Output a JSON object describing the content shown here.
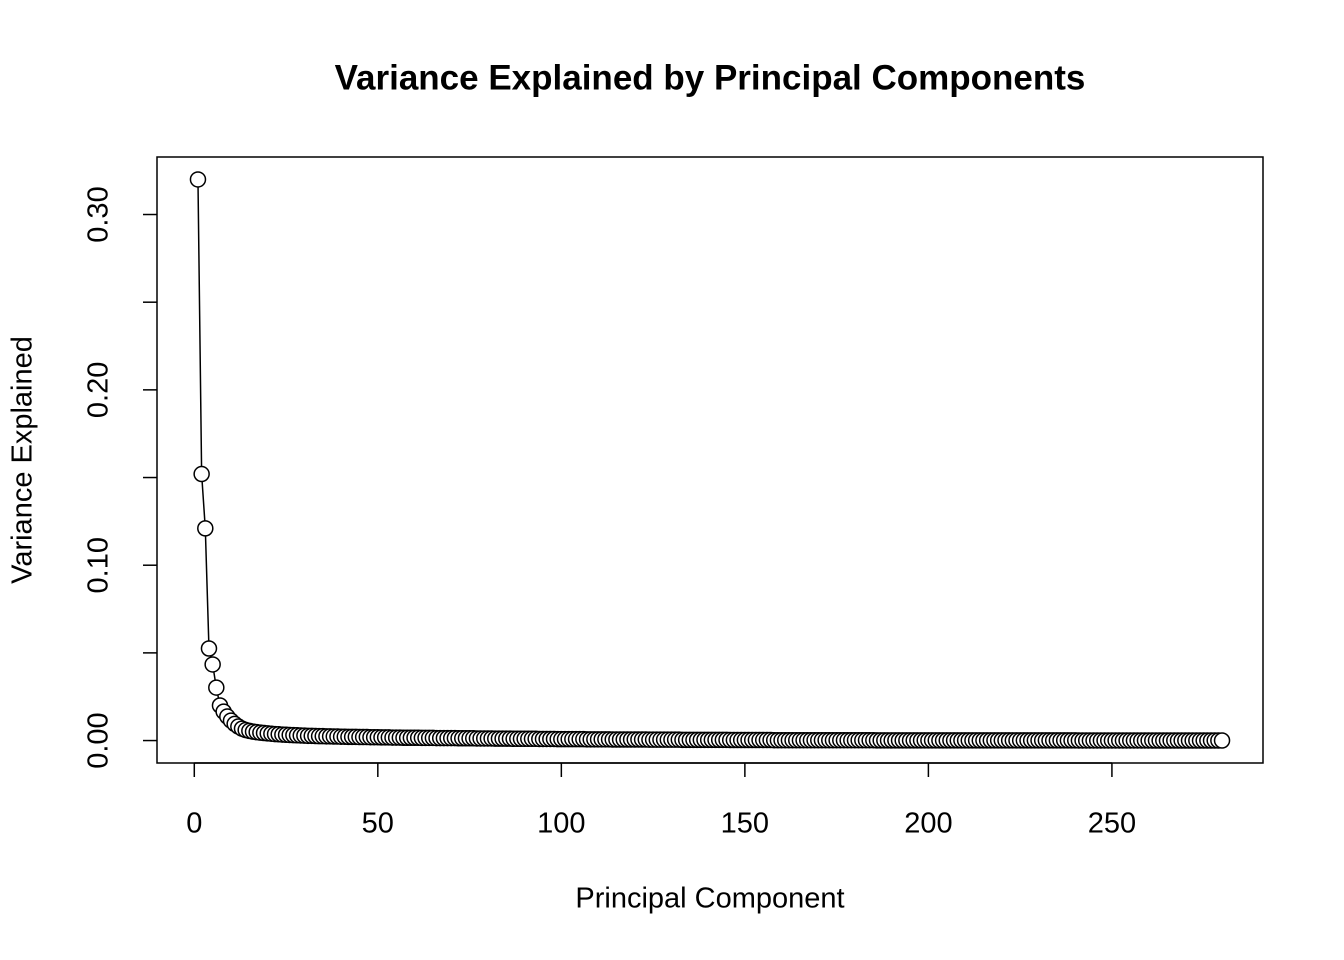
{
  "chart_data": {
    "type": "scatter-line",
    "title": "Variance Explained by Principal Components",
    "x_label": "Principal Component",
    "y_label": "Variance Explained",
    "color": "#000000",
    "xlim": [
      -10.16,
      291.16
    ],
    "ylim": [
      -0.0128,
      0.3328
    ],
    "xticks": [
      0,
      50,
      100,
      150,
      200,
      250
    ],
    "yticks": [
      {
        "value": 0,
        "label": "0.00"
      },
      {
        "value": 0.1,
        "label": "0.10"
      },
      {
        "value": 0.2,
        "label": "0.20"
      },
      {
        "value": 0.3,
        "label": "0.30"
      }
    ],
    "yminor_ticks": [
      0.05,
      0.15,
      0.25
    ],
    "x": [
      1,
      2,
      3,
      4,
      5,
      6,
      7,
      8,
      9,
      10,
      11,
      12,
      13,
      14,
      15,
      16,
      17,
      18,
      19,
      20,
      21,
      22,
      23,
      24,
      25,
      26,
      27,
      28,
      29,
      30,
      31,
      32,
      33,
      34,
      35,
      36,
      37,
      38,
      39,
      40,
      41,
      42,
      43,
      44,
      45,
      46,
      47,
      48,
      49,
      50,
      51,
      52,
      53,
      54,
      55,
      56,
      57,
      58,
      59,
      60,
      61,
      62,
      63,
      64,
      65,
      66,
      67,
      68,
      69,
      70,
      71,
      72,
      73,
      74,
      75,
      76,
      77,
      78,
      79,
      80,
      81,
      82,
      83,
      84,
      85,
      86,
      87,
      88,
      89,
      90,
      91,
      92,
      93,
      94,
      95,
      96,
      97,
      98,
      99,
      100,
      101,
      102,
      103,
      104,
      105,
      106,
      107,
      108,
      109,
      110,
      111,
      112,
      113,
      114,
      115,
      116,
      117,
      118,
      119,
      120,
      121,
      122,
      123,
      124,
      125,
      126,
      127,
      128,
      129,
      130,
      131,
      132,
      133,
      134,
      135,
      136,
      137,
      138,
      139,
      140,
      141,
      142,
      143,
      144,
      145,
      146,
      147,
      148,
      149,
      150,
      151,
      152,
      153,
      154,
      155,
      156,
      157,
      158,
      159,
      160,
      161,
      162,
      163,
      164,
      165,
      166,
      167,
      168,
      169,
      170,
      171,
      172,
      173,
      174,
      175,
      176,
      177,
      178,
      179,
      180,
      181,
      182,
      183,
      184,
      185,
      186,
      187,
      188,
      189,
      190,
      191,
      192,
      193,
      194,
      195,
      196,
      197,
      198,
      199,
      200,
      201,
      202,
      203,
      204,
      205,
      206,
      207,
      208,
      209,
      210,
      211,
      212,
      213,
      214,
      215,
      216,
      217,
      218,
      219,
      220,
      221,
      222,
      223,
      224,
      225,
      226,
      227,
      228,
      229,
      230,
      231,
      232,
      233,
      234,
      235,
      236,
      237,
      238,
      239,
      240,
      241,
      242,
      243,
      244,
      245,
      246,
      247,
      248,
      249,
      250,
      251,
      252,
      253,
      254,
      255,
      256,
      257,
      258,
      259,
      260,
      261,
      262,
      263,
      264,
      265,
      266,
      267,
      268,
      269,
      270,
      271,
      272,
      273,
      274,
      275,
      276,
      277,
      278,
      279,
      280
    ],
    "values": [
      0.32,
      0.152,
      0.121,
      0.0525,
      0.0434,
      0.0302,
      0.02,
      0.0165,
      0.0137,
      0.0114,
      0.0095,
      0.008,
      0.0068,
      0.006,
      0.0055,
      0.0051,
      0.0048,
      0.0045,
      0.0043,
      0.0041,
      0.0039,
      0.0037,
      0.0036,
      0.0034,
      0.0033,
      0.0032,
      0.0031,
      0.003,
      0.0029,
      0.0028,
      0.0027,
      0.0027,
      0.0026,
      0.0025,
      0.0025,
      0.0024,
      0.0024,
      0.0023,
      0.0023,
      0.0022,
      0.0022,
      0.0021,
      0.0021,
      0.0021,
      0.002,
      0.002,
      0.002,
      0.0019,
      0.0019,
      0.0019,
      0.0018,
      0.0018,
      0.0018,
      0.0017,
      0.0017,
      0.0017,
      0.0016,
      0.0016,
      0.0016,
      0.0016,
      0.0016,
      0.0015,
      0.0015,
      0.0015,
      0.0015,
      0.0014,
      0.0014,
      0.0014,
      0.0014,
      0.0014,
      0.0014,
      0.0013,
      0.0013,
      0.0013,
      0.0013,
      0.0013,
      0.0012,
      0.0012,
      0.0012,
      0.0012,
      0.0012,
      0.0011,
      0.0011,
      0.0011,
      0.0011,
      0.0011,
      0.001,
      0.001,
      0.001,
      0.001,
      0.001,
      0.001,
      0.001,
      0.0009,
      0.0009,
      0.0009,
      0.0009,
      0.0009,
      0.0008,
      0.0008,
      0.0008,
      0.0008,
      0.0008,
      0.0008,
      0.0008,
      0.0008,
      0.0007,
      0.0007,
      0.0007,
      0.0007,
      0.0007,
      0.0007,
      0.0007,
      0.0006,
      0.0006,
      0.0006,
      0.0006,
      0.0006,
      0.0006,
      0.0006,
      0.0006,
      0.0006,
      0.0006,
      0.0005,
      0.0005,
      0.0005,
      0.0005,
      0.0005,
      0.0005,
      0.0005,
      0.0005,
      0.0005,
      0.0004,
      0.0004,
      0.0004,
      0.0004,
      0.0004,
      0.0004,
      0.0004,
      0.0004,
      0.0004,
      0.0004,
      0.0004,
      0.0004,
      0.0004,
      0.0003,
      0.0003,
      0.0003,
      0.0003,
      0.0003,
      0.0003,
      0.0003,
      0.0003,
      0.0003,
      0.0003,
      0.0003,
      0.0003,
      0.0002,
      0.0002,
      0.0002,
      0.0002,
      0.0002,
      0.0002,
      0.0002,
      0.0002,
      0.0002,
      0.0002,
      0.0002,
      0.0002,
      0.0002,
      0.0002,
      0.0002,
      0.0002,
      0.0002,
      0.0002,
      0.0002,
      0.0002,
      0.0002,
      0.0002,
      0.0002,
      0.0002,
      0.0002,
      0.0002,
      0.0002,
      0.0002,
      0.0001,
      0.0001,
      0.0001,
      0.0001,
      0.0001,
      0.0001,
      0.0001,
      0.0001,
      0.0001,
      0.0001,
      0.0001,
      0.0001,
      0.0001,
      0.0001,
      0.0001,
      0.0001,
      0.0001,
      0.0001,
      0.0001,
      0.0001,
      0.0001,
      0.0001,
      0.0001,
      0.0001,
      0.0001,
      0.0001,
      0.0001,
      0.0001,
      0.0001,
      0.0001,
      0.0001,
      0.0001,
      0.0001,
      0.0001,
      0.0001,
      0.0001,
      0.0001,
      0.0001,
      0.0001,
      0.0001,
      0.0001,
      0.0001,
      0.0001,
      0.0001,
      0.0001,
      0.0001,
      0.0001,
      0.0001,
      0.0001,
      0.0001,
      0.0001,
      0.0001,
      0.0001,
      0.0001,
      0.0001,
      5e-05,
      5e-05,
      5e-05,
      5e-05,
      5e-05,
      5e-05,
      5e-05,
      5e-05,
      5e-05,
      5e-05,
      5e-05,
      5e-05,
      5e-05,
      5e-05,
      5e-05,
      5e-05,
      5e-05,
      5e-05,
      5e-05,
      5e-05,
      2e-05,
      2e-05,
      2e-05,
      2e-05,
      2e-05,
      2e-05,
      2e-05,
      2e-05,
      2e-05,
      2e-05,
      2e-05,
      2e-05,
      2e-05,
      2e-05,
      2e-05,
      2e-05,
      2e-05,
      2e-05,
      2e-05,
      2e-05
    ]
  }
}
